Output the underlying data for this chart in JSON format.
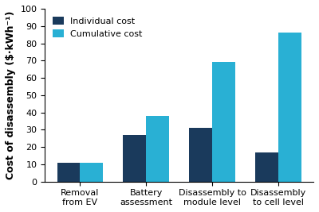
{
  "categories": [
    "Removal\nfrom EV",
    "Battery\nassessment",
    "Disassembly to\nmodule level",
    "Disassembly\nto cell level"
  ],
  "individual_cost": [
    11,
    27,
    31,
    17
  ],
  "cumulative_cost": [
    11,
    38,
    69,
    86
  ],
  "individual_color": "#1a3a5c",
  "cumulative_color": "#29b0d4",
  "ylabel": "Cost of disassembly ($·kWh⁻¹)",
  "ylim": [
    0,
    100
  ],
  "yticks": [
    0,
    10,
    20,
    30,
    40,
    50,
    60,
    70,
    80,
    90,
    100
  ],
  "legend_labels": [
    "Individual cost",
    "Cumulative cost"
  ],
  "bar_width": 0.35,
  "title_fontsize": 10,
  "axis_fontsize": 9,
  "tick_fontsize": 8,
  "legend_fontsize": 8,
  "background_color": "#ffffff"
}
